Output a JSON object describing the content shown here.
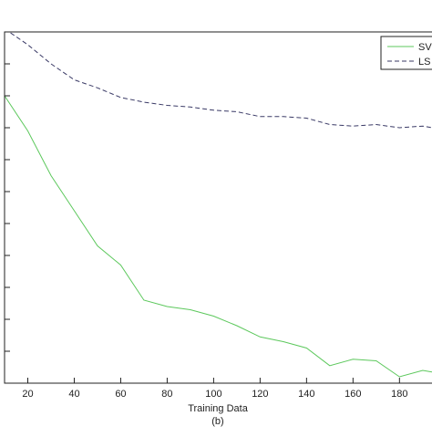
{
  "chart_data": {
    "type": "line",
    "title": "",
    "xlabel": "Training Data",
    "ylabel": "",
    "caption": "(b)",
    "xlim": [
      10,
      194
    ],
    "ylim": [
      0,
      11
    ],
    "x_ticks": [
      20,
      40,
      60,
      80,
      100,
      120,
      140,
      160,
      180
    ],
    "y_tick_count": 11,
    "grid": false,
    "legend_position": "top-right",
    "series": [
      {
        "name": "SV",
        "color": "#5cc85c",
        "style": "solid",
        "x": [
          10,
          20,
          30,
          40,
          50,
          60,
          70,
          80,
          90,
          100,
          110,
          120,
          130,
          140,
          150,
          160,
          170,
          180,
          190,
          194
        ],
        "y": [
          9.0,
          7.9,
          6.5,
          5.4,
          4.3,
          3.7,
          2.6,
          2.4,
          2.3,
          2.1,
          1.8,
          1.45,
          1.3,
          1.1,
          0.55,
          0.75,
          0.7,
          0.2,
          0.4,
          0.35
        ]
      },
      {
        "name": "LS",
        "color": "#3a3a66",
        "style": "dashed",
        "x": [
          10,
          20,
          30,
          40,
          50,
          60,
          70,
          80,
          90,
          100,
          110,
          120,
          130,
          140,
          150,
          160,
          170,
          180,
          190,
          194
        ],
        "y": [
          11.1,
          10.6,
          10.0,
          9.5,
          9.25,
          8.95,
          8.8,
          8.7,
          8.65,
          8.55,
          8.5,
          8.35,
          8.35,
          8.3,
          8.1,
          8.05,
          8.1,
          8.0,
          8.05,
          8.0
        ]
      }
    ]
  }
}
